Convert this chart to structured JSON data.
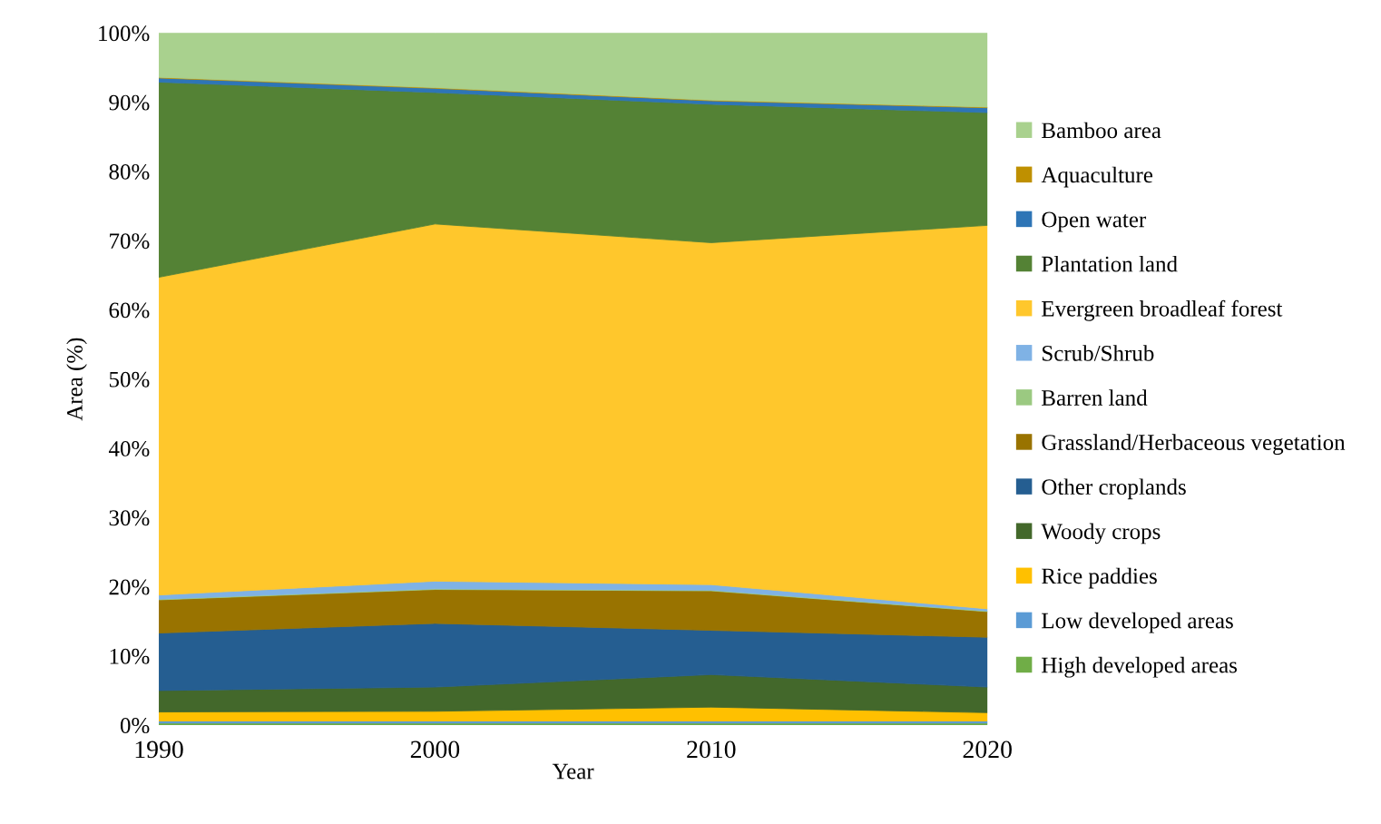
{
  "chart_data": {
    "type": "area",
    "stacked": true,
    "xlabel": "Year",
    "ylabel": "Area (%)",
    "x": [
      1990,
      2000,
      2010,
      2020
    ],
    "xlim": [
      1990,
      2020
    ],
    "xticks": [
      1990,
      2000,
      2010,
      2020
    ],
    "ylim": [
      0,
      100
    ],
    "yticks": [
      {
        "value": 0,
        "label": "0%"
      },
      {
        "value": 10,
        "label": "10%"
      },
      {
        "value": 20,
        "label": "20%"
      },
      {
        "value": 30,
        "label": "30%"
      },
      {
        "value": 40,
        "label": "40%"
      },
      {
        "value": 50,
        "label": "50%"
      },
      {
        "value": 60,
        "label": "60%"
      },
      {
        "value": 70,
        "label": "70%"
      },
      {
        "value": 80,
        "label": "80%"
      },
      {
        "value": 90,
        "label": "90%"
      },
      {
        "value": 100,
        "label": "100%"
      }
    ],
    "grid": false,
    "legend": "right",
    "series": [
      {
        "name": "High developed areas",
        "color": "#70ad47",
        "values": [
          0.3,
          0.3,
          0.3,
          0.3
        ]
      },
      {
        "name": "Low developed areas",
        "color": "#5b9bd5",
        "values": [
          0.3,
          0.3,
          0.3,
          0.3
        ]
      },
      {
        "name": "Rice paddies",
        "color": "#ffc000",
        "values": [
          1.3,
          1.4,
          2.0,
          1.2
        ]
      },
      {
        "name": "Woody crops",
        "color": "#43682b",
        "values": [
          3.1,
          3.5,
          4.7,
          3.7
        ]
      },
      {
        "name": "Other croplands",
        "color": "#255e91",
        "values": [
          8.3,
          9.2,
          6.4,
          7.2
        ]
      },
      {
        "name": "Grassland/Herbaceous vegetation",
        "color": "#997300",
        "values": [
          4.8,
          4.9,
          5.7,
          3.7
        ]
      },
      {
        "name": "Barren land",
        "color": "#9bc981",
        "values": [
          0.1,
          0.1,
          0.1,
          0.1
        ]
      },
      {
        "name": "Scrub/Shrub",
        "color": "#7fb2e5",
        "values": [
          0.6,
          1.1,
          0.8,
          0.3
        ]
      },
      {
        "name": "Evergreen broadleaf forest",
        "color": "#ffc72c",
        "values": [
          45.9,
          51.6,
          49.4,
          55.4
        ]
      },
      {
        "name": "Plantation land",
        "color": "#548235",
        "values": [
          28.2,
          19.0,
          20.0,
          16.3
        ]
      },
      {
        "name": "Open water",
        "color": "#2e75b6",
        "values": [
          0.6,
          0.6,
          0.5,
          0.7
        ]
      },
      {
        "name": "Aquaculture",
        "color": "#bf9000",
        "values": [
          0.1,
          0.1,
          0.1,
          0.1
        ]
      },
      {
        "name": "Bamboo area",
        "color": "#a9d18e",
        "values": [
          6.4,
          7.9,
          9.7,
          10.7
        ]
      }
    ]
  }
}
